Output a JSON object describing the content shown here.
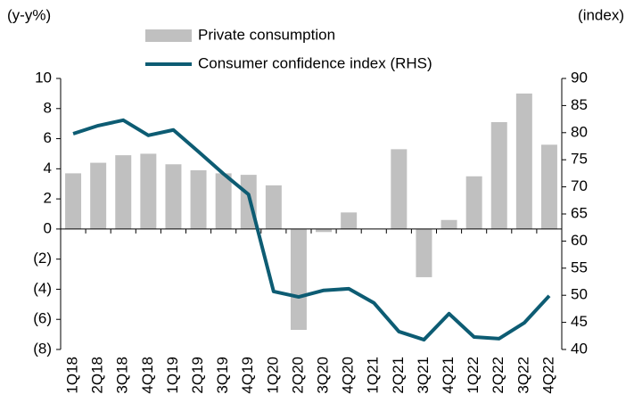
{
  "chart_data": {
    "type": "bar-line",
    "ylabel": "(y-y%)",
    "y2label": "(index)",
    "categories": [
      "1Q18",
      "2Q18",
      "3Q18",
      "4Q18",
      "1Q19",
      "2Q19",
      "3Q19",
      "4Q19",
      "1Q20",
      "2Q20",
      "3Q20",
      "4Q20",
      "1Q21",
      "2Q21",
      "3Q21",
      "4Q21",
      "1Q22",
      "2Q22",
      "3Q22",
      "4Q22"
    ],
    "series": [
      {
        "name": "Private consumption",
        "type": "bar",
        "color": "#c0c0c0",
        "values": [
          3.7,
          4.4,
          4.9,
          5.0,
          4.3,
          3.9,
          3.7,
          3.6,
          2.9,
          -6.7,
          -0.2,
          1.1,
          0,
          5.3,
          -3.2,
          0.6,
          3.5,
          7.1,
          9.0,
          5.6
        ]
      },
      {
        "name": "Consumer confidence index (RHS)",
        "type": "line",
        "axis": "y2",
        "color": "#0d5c73",
        "values": [
          79.8,
          81.3,
          82.3,
          79.5,
          80.5,
          76.5,
          72.4,
          68.6,
          50.7,
          49.7,
          50.9,
          51.2,
          48.6,
          43.3,
          41.8,
          46.6,
          42.3,
          42.0,
          44.9,
          49.9
        ]
      }
    ],
    "ylim": [
      -8,
      10
    ],
    "yticks": [
      {
        "value": -8,
        "label": "(8)"
      },
      {
        "value": -6,
        "label": "(6)"
      },
      {
        "value": -4,
        "label": "(4)"
      },
      {
        "value": -2,
        "label": "(2)"
      },
      0,
      2,
      4,
      6,
      8,
      10
    ],
    "y2lim": [
      40,
      90
    ],
    "y2ticks": [
      40,
      45,
      50,
      55,
      60,
      65,
      70,
      75,
      80,
      85,
      90
    ]
  }
}
